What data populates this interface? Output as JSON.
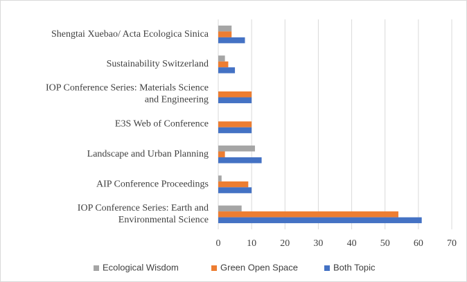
{
  "chart_data": {
    "type": "bar",
    "orientation": "horizontal",
    "categories": [
      "Shengtai Xuebao/ Acta Ecologica Sinica",
      "Sustainability Switzerland",
      "IOP Conference Series: Materials Science\nand Engineering",
      "E3S Web of Conference",
      "Landscape and Urban Planning",
      "AIP Conference Proceedings",
      "IOP Conference Series: Earth and\nEnvironmental Science"
    ],
    "series": [
      {
        "name": "Ecological Wisdom",
        "color": "#a5a5a5",
        "values": [
          4,
          2,
          0,
          0,
          11,
          1,
          7
        ]
      },
      {
        "name": "Green Open Space",
        "color": "#ed7d31",
        "values": [
          4,
          3,
          10,
          10,
          2,
          9,
          54
        ]
      },
      {
        "name": "Both Topic",
        "color": "#4472c4",
        "values": [
          8,
          5,
          10,
          10,
          13,
          10,
          61
        ]
      }
    ],
    "xlim": [
      0,
      70
    ],
    "xticks": [
      0,
      10,
      20,
      30,
      40,
      50,
      60,
      70
    ],
    "grid": true,
    "legend": "bottom"
  }
}
